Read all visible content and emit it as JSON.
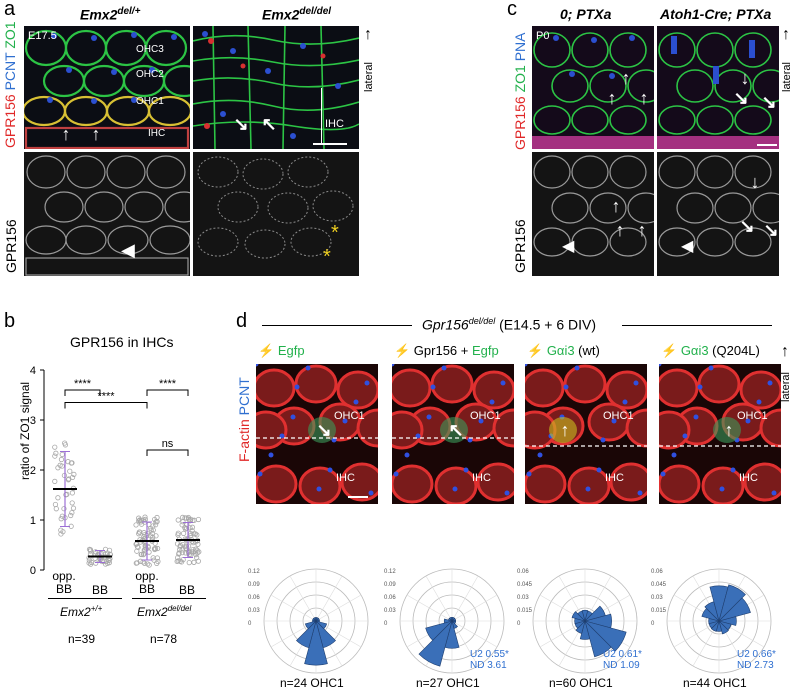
{
  "panel_a": {
    "letter": "a",
    "col1_title": "Emx2",
    "col1_sup": "del/+",
    "col2_title": "Emx2",
    "col2_sup": "del/del",
    "stage": "E17.5",
    "rows": [
      "OHC3",
      "OHC2",
      "OHC1",
      "IHC"
    ],
    "ihc_bracket": "IHC",
    "lateral": "lateral",
    "side_gpr156": "GPR156",
    "side_pcnt": "PCNT",
    "side_zo1": "ZO1",
    "side_gray": "GPR156"
  },
  "panel_c": {
    "letter": "c",
    "col1_title": "0; PTXa",
    "col2_title": "Atoh1-Cre; PTXa",
    "stage": "P0",
    "lateral": "lateral",
    "side_gpr156": "GPR156",
    "side_zo1": "ZO1",
    "side_pna": "PNA",
    "side_gray": "GPR156"
  },
  "panel_b": {
    "letter": "b",
    "chart_data": {
      "type": "scatter",
      "title": "GPR156 in IHCs",
      "ylabel": "ratio of ZO1 signal",
      "ylim": [
        0,
        4
      ],
      "yticks": [
        0,
        1,
        2,
        3,
        4
      ],
      "categories": [
        "opp. BB",
        "BB",
        "opp. BB",
        "BB"
      ],
      "groups": [
        {
          "name": "Emx2+/+",
          "n": "n=39"
        },
        {
          "name": "Emx2del/del",
          "n": "n=78"
        }
      ],
      "means": [
        1.62,
        0.27,
        0.58,
        0.6
      ],
      "sd": [
        0.75,
        0.12,
        0.38,
        0.35
      ],
      "significance": [
        "****",
        "****",
        "****",
        "ns"
      ]
    },
    "group1_label": "Emx2",
    "group1_sup": "+/+",
    "group2_label": "Emx2",
    "group2_sup": "del/del",
    "n1": "n=39",
    "n2": "n=78",
    "cat1": "opp.",
    "cat1b": "BB",
    "cat2": "BB",
    "cat3": "opp.",
    "cat3b": "BB",
    "cat4": "BB",
    "star1": "****",
    "star2": "****",
    "star3": "****",
    "ns": "ns"
  },
  "panel_d": {
    "letter": "d",
    "header_gene": "Gpr156",
    "header_sup": "del/del",
    "header_rest": "(E14.5 + 6 DIV)",
    "side_factin": "F-actin",
    "side_pcnt": "PCNT",
    "lateral": "lateral",
    "conditions": [
      {
        "label1": "",
        "label2": "Egfp",
        "n": "n=24 OHC1",
        "u2": "",
        "nd": "",
        "rmax": "0.12"
      },
      {
        "label1": "Gpr156 + ",
        "label2": "Egfp",
        "n": "n=27 OHC1",
        "u2": "U2 0.55*",
        "nd": "ND 3.61",
        "rmax": "0.12"
      },
      {
        "label1": "",
        "label2": "Gαi3",
        "label3": " (wt)",
        "n": "n=60 OHC1",
        "u2": "U2 0.61*",
        "nd": "ND 1.09",
        "rmax": "0.06"
      },
      {
        "label1": "",
        "label2": "Gαi3",
        "label3": " (Q204L)",
        "n": "n=44 OHC1",
        "u2": "U2 0.66*",
        "nd": "ND 2.73",
        "rmax": "0.06"
      }
    ],
    "polar_ticks_a": [
      "0.12",
      "0.09",
      "0.06",
      "0.03",
      "0"
    ],
    "polar_ticks_b": [
      "0.06",
      "0.045",
      "0.03",
      "0.015",
      "0"
    ],
    "ohc1": "OHC1",
    "ihc": "IHC"
  },
  "colors": {
    "red": "#e02828",
    "green": "#22b14c",
    "blue": "#2f6fd0",
    "rose": "#3a6fb8",
    "purple": "#9c6fd6"
  }
}
